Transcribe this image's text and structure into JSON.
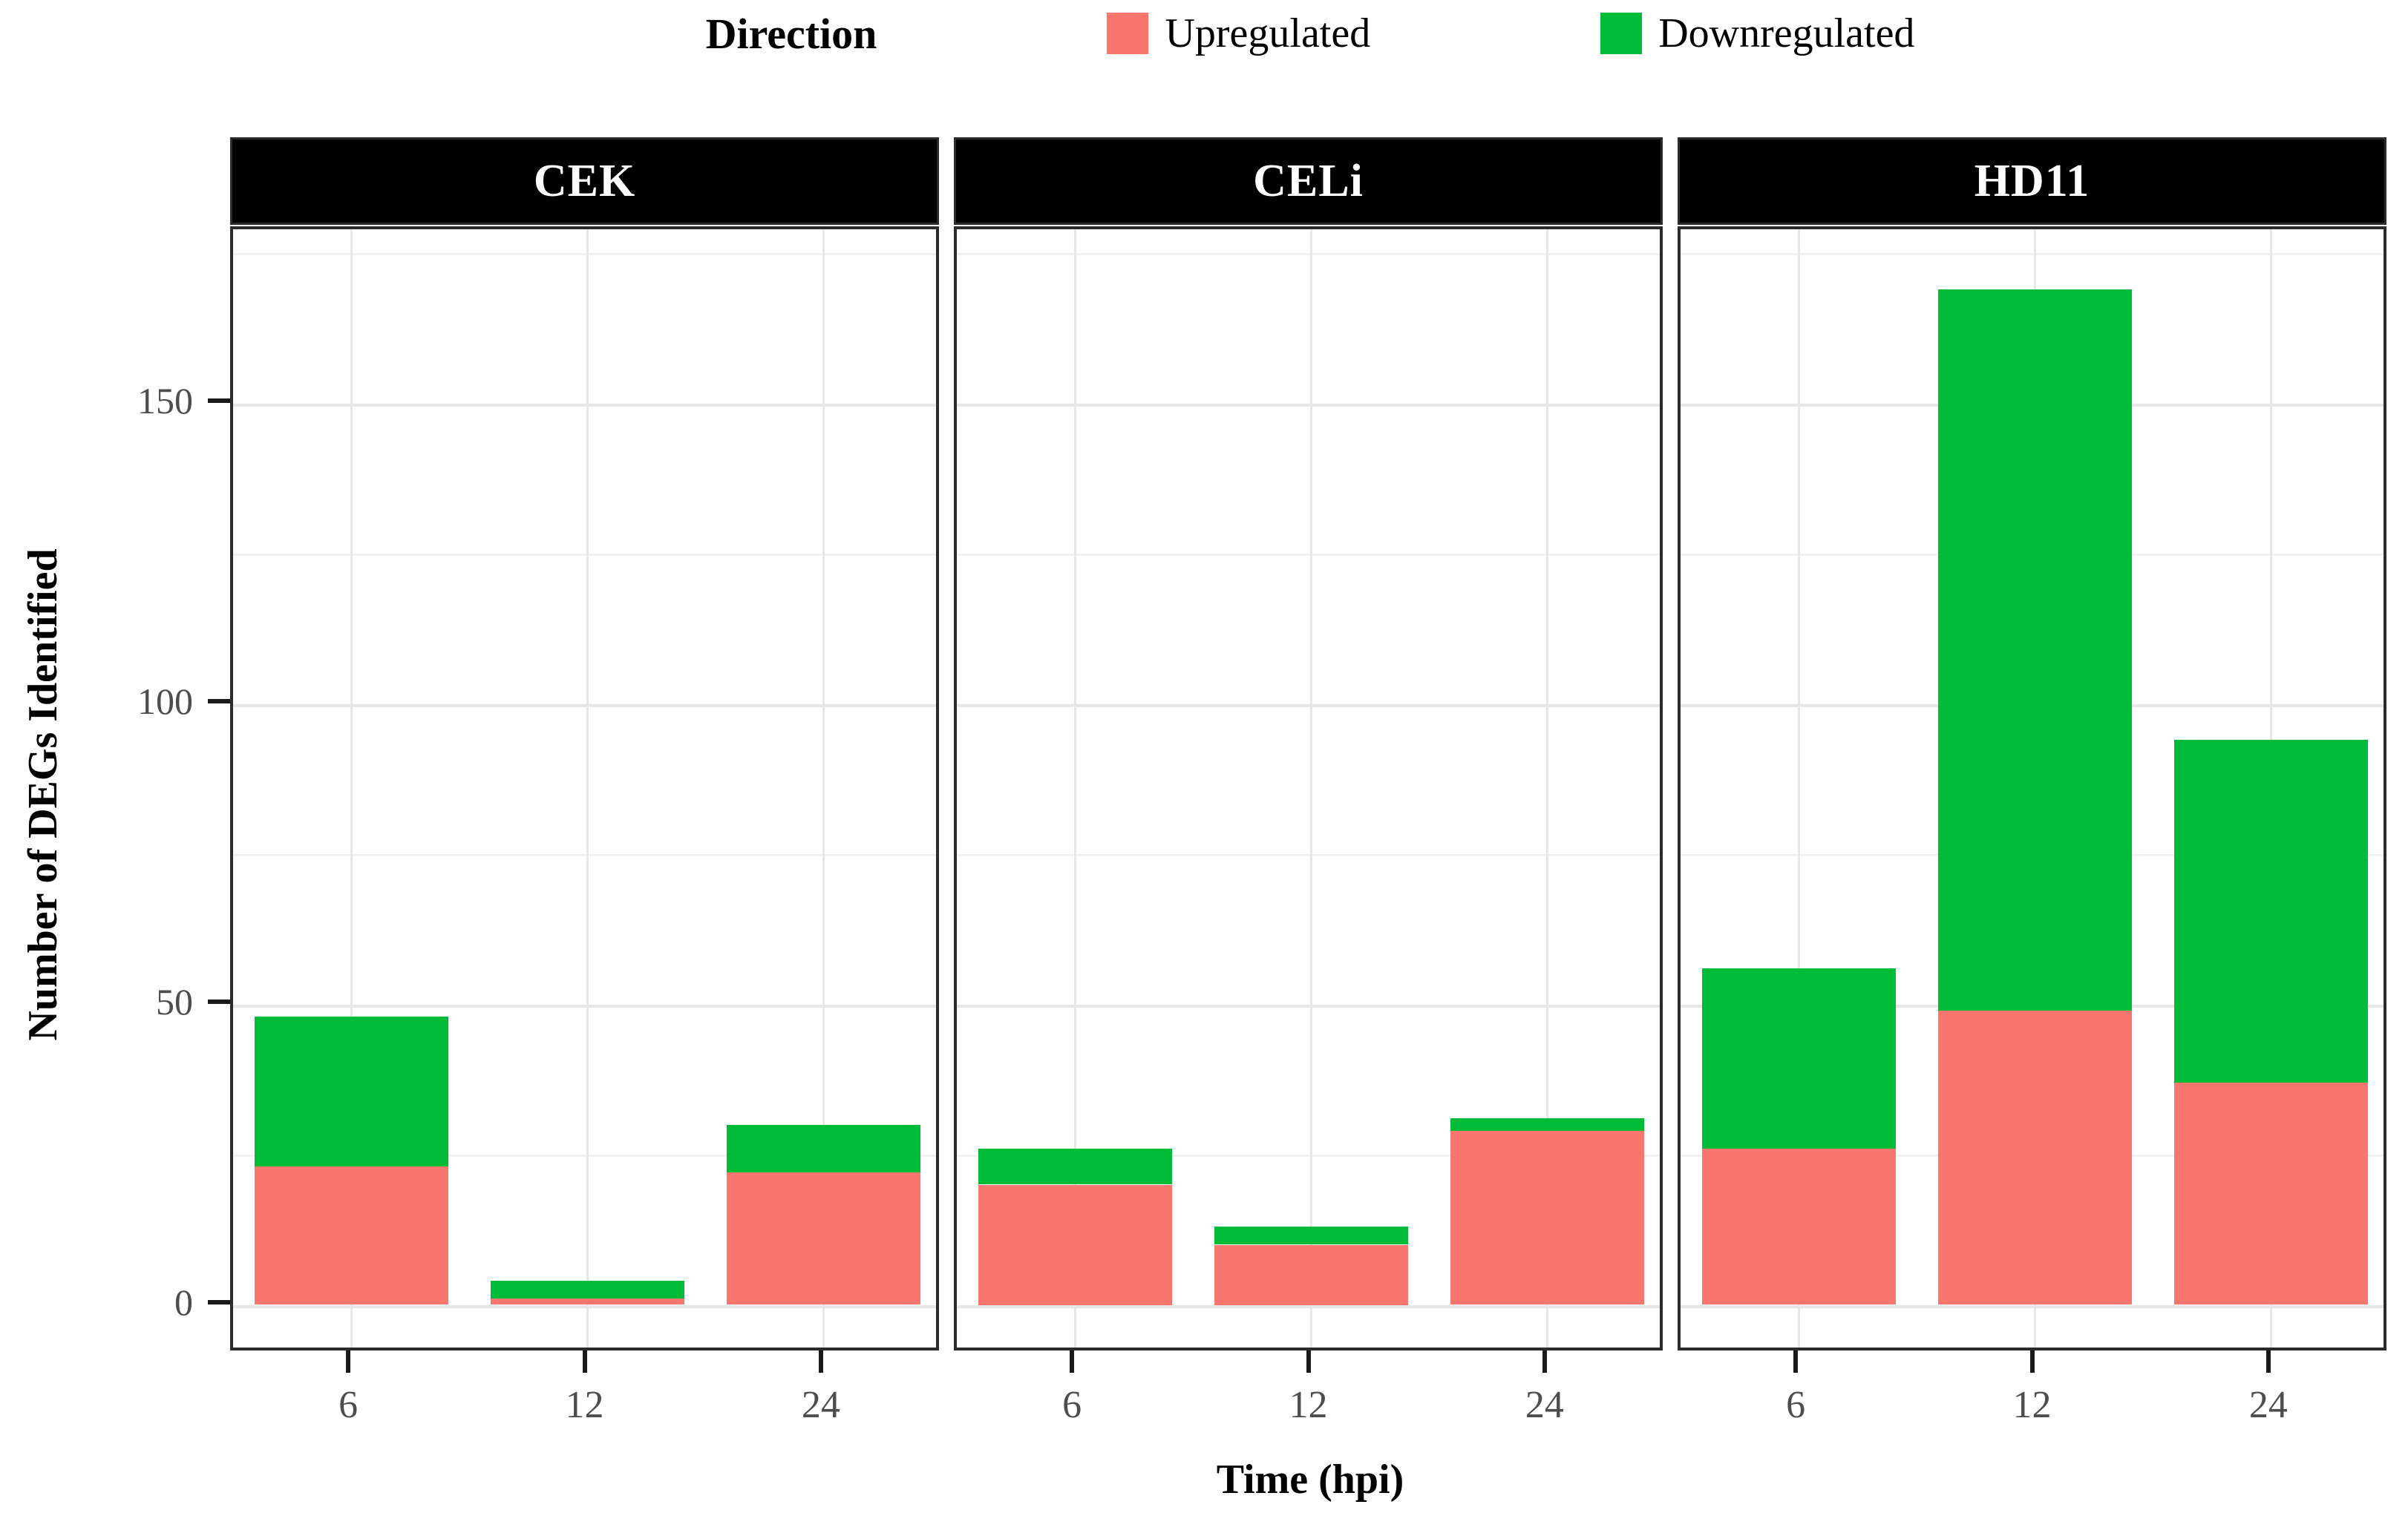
{
  "chart_data": {
    "type": "bar",
    "stacked": true,
    "legend_title": "Direction",
    "series": [
      {
        "name": "Upregulated",
        "key": "up",
        "color": "#F8766D"
      },
      {
        "name": "Downregulated",
        "key": "down",
        "color": "#00BB38"
      }
    ],
    "facets": [
      {
        "label": "CEK",
        "bars": [
          {
            "x": "6",
            "up": 23,
            "down": 25
          },
          {
            "x": "12",
            "up": 1,
            "down": 3
          },
          {
            "x": "24",
            "up": 22,
            "down": 8
          }
        ]
      },
      {
        "label": "CELi",
        "bars": [
          {
            "x": "6",
            "up": 20,
            "down": 6
          },
          {
            "x": "12",
            "up": 10,
            "down": 3
          },
          {
            "x": "24",
            "up": 29,
            "down": 2
          }
        ]
      },
      {
        "label": "HD11",
        "bars": [
          {
            "x": "6",
            "up": 26,
            "down": 30
          },
          {
            "x": "12",
            "up": 49,
            "down": 120
          },
          {
            "x": "24",
            "up": 37,
            "down": 57
          }
        ]
      }
    ],
    "categories": [
      "6",
      "12",
      "24"
    ],
    "xlabel": "Time (hpi)",
    "ylabel": "Number of DEGs Identified",
    "y_ticks": [
      0,
      50,
      100,
      150
    ],
    "y_minor_ticks": [
      25,
      75,
      125,
      175
    ],
    "ylim": [
      -8.1,
      178.9
    ],
    "grid": true,
    "legend_position": "top",
    "colors": {
      "strip_background": "#000000",
      "strip_text": "#ffffff",
      "panel_border": "#2b2b2b",
      "major_gridline": "#e7e7e7",
      "minor_gridline": "#f2f2f2",
      "axis_text": "#4d4d4d",
      "tick_mark": "#1a1a1a"
    }
  }
}
